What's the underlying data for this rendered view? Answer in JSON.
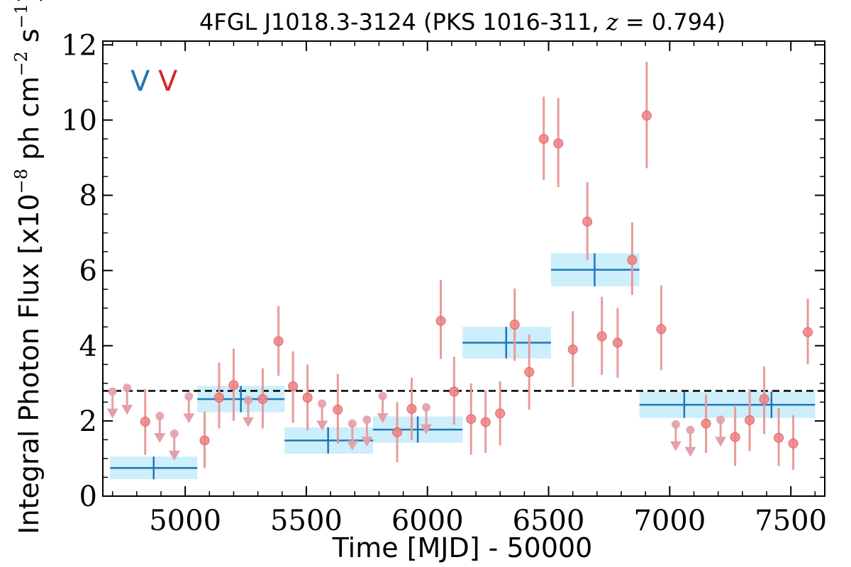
{
  "chart_data": {
    "type": "scatter",
    "title_parts": [
      "4FGL J1018.3-3124 (PKS 1016-311, ",
      "z",
      " = 0.794)"
    ],
    "xlabel": "Time [MJD] - 50000",
    "ylabel_parts": [
      "Integral Photon Flux [x10",
      "−8",
      " ph cm",
      "−2",
      " s",
      "−1",
      "]"
    ],
    "xlim": [
      4660,
      7640
    ],
    "ylim": [
      0,
      12.1
    ],
    "xticks": [
      5000,
      5500,
      6000,
      6500,
      7000,
      7500
    ],
    "xtick_labels": [
      "5000",
      "5500",
      "6000",
      "6500",
      "7000",
      "7500"
    ],
    "yticks": [
      0,
      2,
      4,
      6,
      8,
      10,
      12
    ],
    "ytick_labels": [
      "0",
      "2",
      "4",
      "6",
      "8",
      "10",
      "12"
    ],
    "variability_labels": [
      {
        "text": "V",
        "color": "#1f77b4"
      },
      {
        "text": "V",
        "color": "#d62728"
      }
    ],
    "mean_flux": 2.8,
    "colors": {
      "blocks": "#1f77b4",
      "block_band": "#cdeefb",
      "points": "#f08080",
      "errorbar": "#e89a9a",
      "upper_limits": "#e3a0a8"
    },
    "block_series": [
      {
        "x": 4870,
        "x_lo": 4690,
        "x_hi": 5050,
        "y": 0.75,
        "y_lo": 0.45,
        "y_hi": 1.05
      },
      {
        "x": 5230,
        "x_lo": 5050,
        "x_hi": 5410,
        "y": 2.58,
        "y_lo": 2.23,
        "y_hi": 2.93
      },
      {
        "x": 5590,
        "x_lo": 5410,
        "x_hi": 5775,
        "y": 1.48,
        "y_lo": 1.13,
        "y_hi": 1.83
      },
      {
        "x": 5960,
        "x_lo": 5775,
        "x_hi": 6145,
        "y": 1.77,
        "y_lo": 1.42,
        "y_hi": 2.12
      },
      {
        "x": 6325,
        "x_lo": 6145,
        "x_hi": 6510,
        "y": 4.08,
        "y_lo": 3.66,
        "y_hi": 4.5
      },
      {
        "x": 6690,
        "x_lo": 6510,
        "x_hi": 6875,
        "y": 6.02,
        "y_lo": 5.58,
        "y_hi": 6.46
      },
      {
        "x": 7060,
        "x_lo": 6875,
        "x_hi": 7245,
        "y": 2.43,
        "y_lo": 2.08,
        "y_hi": 2.78
      },
      {
        "x": 7420,
        "x_lo": 7245,
        "x_hi": 7600,
        "y": 2.43,
        "y_lo": 2.08,
        "y_hi": 2.78
      }
    ],
    "detections": [
      {
        "x": 4835,
        "y": 1.98,
        "y_lo": 1.1,
        "y_hi": 2.85
      },
      {
        "x": 5080,
        "y": 1.48,
        "y_lo": 0.75,
        "y_hi": 2.25
      },
      {
        "x": 5140,
        "y": 2.62,
        "y_lo": 1.8,
        "y_hi": 3.55
      },
      {
        "x": 5200,
        "y": 2.95,
        "y_lo": 2.0,
        "y_hi": 3.92
      },
      {
        "x": 5320,
        "y": 2.58,
        "y_lo": 1.8,
        "y_hi": 3.4
      },
      {
        "x": 5385,
        "y": 4.12,
        "y_lo": 3.2,
        "y_hi": 5.05
      },
      {
        "x": 5445,
        "y": 2.92,
        "y_lo": 1.95,
        "y_hi": 3.85
      },
      {
        "x": 5505,
        "y": 2.62,
        "y_lo": 1.75,
        "y_hi": 3.5
      },
      {
        "x": 5630,
        "y": 2.3,
        "y_lo": 1.4,
        "y_hi": 3.25
      },
      {
        "x": 5875,
        "y": 1.7,
        "y_lo": 0.9,
        "y_hi": 2.5
      },
      {
        "x": 5935,
        "y": 2.32,
        "y_lo": 1.5,
        "y_hi": 3.15
      },
      {
        "x": 6055,
        "y": 4.66,
        "y_lo": 3.65,
        "y_hi": 5.75
      },
      {
        "x": 6110,
        "y": 2.78,
        "y_lo": 1.9,
        "y_hi": 3.7
      },
      {
        "x": 6180,
        "y": 2.05,
        "y_lo": 1.1,
        "y_hi": 3.0
      },
      {
        "x": 6240,
        "y": 1.97,
        "y_lo": 1.15,
        "y_hi": 2.8
      },
      {
        "x": 6300,
        "y": 2.2,
        "y_lo": 1.35,
        "y_hi": 3.05
      },
      {
        "x": 6360,
        "y": 4.56,
        "y_lo": 3.6,
        "y_hi": 5.52
      },
      {
        "x": 6420,
        "y": 3.3,
        "y_lo": 2.3,
        "y_hi": 4.3
      },
      {
        "x": 6480,
        "y": 9.5,
        "y_lo": 8.4,
        "y_hi": 10.62
      },
      {
        "x": 6540,
        "y": 9.38,
        "y_lo": 8.22,
        "y_hi": 10.58
      },
      {
        "x": 6600,
        "y": 3.9,
        "y_lo": 2.9,
        "y_hi": 4.92
      },
      {
        "x": 6660,
        "y": 7.3,
        "y_lo": 6.28,
        "y_hi": 8.35
      },
      {
        "x": 6720,
        "y": 4.25,
        "y_lo": 3.22,
        "y_hi": 5.3
      },
      {
        "x": 6785,
        "y": 4.08,
        "y_lo": 3.15,
        "y_hi": 5.0
      },
      {
        "x": 6845,
        "y": 6.28,
        "y_lo": 5.35,
        "y_hi": 7.28
      },
      {
        "x": 6905,
        "y": 10.12,
        "y_lo": 8.72,
        "y_hi": 11.55
      },
      {
        "x": 6965,
        "y": 4.44,
        "y_lo": 3.35,
        "y_hi": 5.6
      },
      {
        "x": 7150,
        "y": 1.93,
        "y_lo": 1.15,
        "y_hi": 2.7
      },
      {
        "x": 7270,
        "y": 1.57,
        "y_lo": 0.8,
        "y_hi": 2.38
      },
      {
        "x": 7330,
        "y": 2.02,
        "y_lo": 1.2,
        "y_hi": 2.85
      },
      {
        "x": 7390,
        "y": 2.58,
        "y_lo": 1.65,
        "y_hi": 3.45
      },
      {
        "x": 7450,
        "y": 1.55,
        "y_lo": 0.8,
        "y_hi": 2.35
      },
      {
        "x": 7510,
        "y": 1.4,
        "y_lo": 0.7,
        "y_hi": 2.15
      },
      {
        "x": 7570,
        "y": 4.36,
        "y_lo": 3.5,
        "y_hi": 5.25
      }
    ],
    "upper_limits": [
      {
        "x": 4700,
        "y": 2.78
      },
      {
        "x": 4760,
        "y": 2.88
      },
      {
        "x": 4895,
        "y": 2.13
      },
      {
        "x": 4955,
        "y": 1.66
      },
      {
        "x": 5015,
        "y": 2.65
      },
      {
        "x": 5260,
        "y": 2.55
      },
      {
        "x": 5565,
        "y": 2.46
      },
      {
        "x": 5690,
        "y": 1.93
      },
      {
        "x": 5750,
        "y": 2.03
      },
      {
        "x": 5815,
        "y": 2.66
      },
      {
        "x": 5995,
        "y": 2.36
      },
      {
        "x": 7025,
        "y": 1.91
      },
      {
        "x": 7085,
        "y": 1.76
      },
      {
        "x": 7210,
        "y": 2.03
      }
    ]
  }
}
